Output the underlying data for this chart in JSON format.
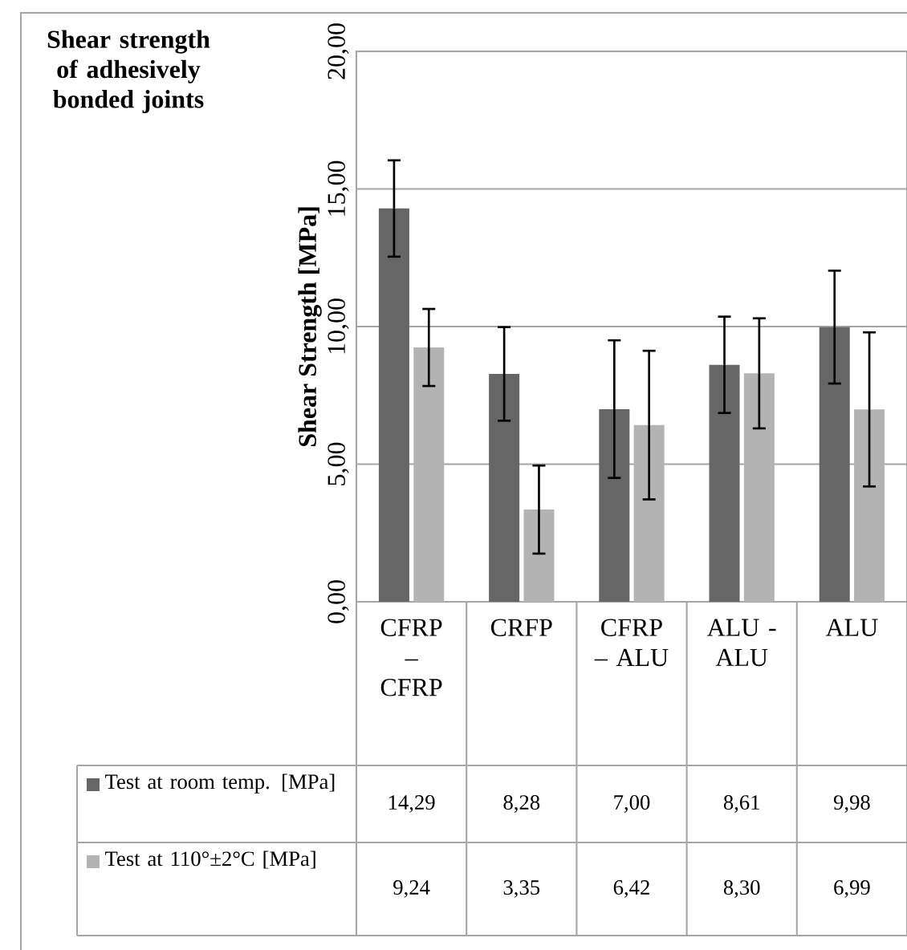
{
  "chart_data": {
    "type": "bar",
    "title": "Shear strength of adhesively bonded joints",
    "ylabel": "Shear Strength [MPa]",
    "categories": [
      "CFRP – CFRP",
      "CRFP",
      "CFRP – ALU",
      "ALU - ALU",
      "ALU"
    ],
    "series": [
      {
        "name": "Test at room temp. [MPa]",
        "color": "#666666",
        "values": [
          14.29,
          8.28,
          7.0,
          8.61,
          9.98
        ],
        "errors": [
          1.75,
          1.7,
          2.5,
          1.75,
          2.05
        ],
        "value_labels": [
          "14,29",
          "8,28",
          "7,00",
          "8,61",
          "9,98"
        ]
      },
      {
        "name": "Test at 110°±2°C [MPa]",
        "color": "#b3b3b3",
        "values": [
          9.24,
          3.35,
          6.42,
          8.3,
          6.99
        ],
        "errors": [
          1.4,
          1.6,
          2.7,
          2.0,
          2.8
        ],
        "value_labels": [
          "9,24",
          "3,35",
          "6,42",
          "8,30",
          "6,99"
        ]
      }
    ],
    "ylim": [
      0,
      20
    ],
    "yticks": [
      {
        "value": 0,
        "label": "0,00"
      },
      {
        "value": 5,
        "label": "5,00"
      },
      {
        "value": 10,
        "label": "10,00"
      },
      {
        "value": 15,
        "label": "15,00"
      },
      {
        "value": 20,
        "label": "20,00"
      }
    ],
    "grid": "y",
    "legend": "bottom"
  }
}
